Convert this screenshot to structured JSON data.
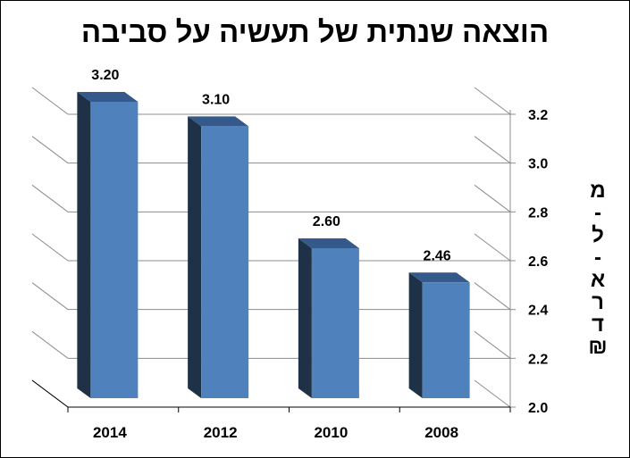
{
  "chart_data": {
    "type": "bar",
    "title": "הוצאה שנתית של תעשיה על סביבה",
    "categories": [
      "2014",
      "2012",
      "2010",
      "2008"
    ],
    "values": [
      3.2,
      3.1,
      2.6,
      2.46
    ],
    "data_labels": [
      "3.20",
      "3.10",
      "2.60",
      "2.46"
    ],
    "ylabel": "מ-ל-א-ר-ד ₪",
    "ylabel_chars": [
      "מ",
      "-",
      "ל",
      "-",
      "א",
      "ר",
      "ד",
      "₪"
    ],
    "ylim": [
      2.0,
      3.2
    ],
    "yticks": [
      2.0,
      2.2,
      2.4,
      2.6,
      2.8,
      3.0,
      3.2
    ],
    "ytick_labels": [
      "2.0",
      "2.2",
      "2.4",
      "2.6",
      "2.8",
      "3.0",
      "3.2"
    ],
    "y_axis_side": "right",
    "grid": true,
    "style": "3d-column",
    "colors": {
      "bar_front": "#4f81bd",
      "bar_side": "#1f3147",
      "bar_top": "#35598a",
      "grid": "#8c8c8c",
      "floor_edge": "#000000"
    }
  }
}
